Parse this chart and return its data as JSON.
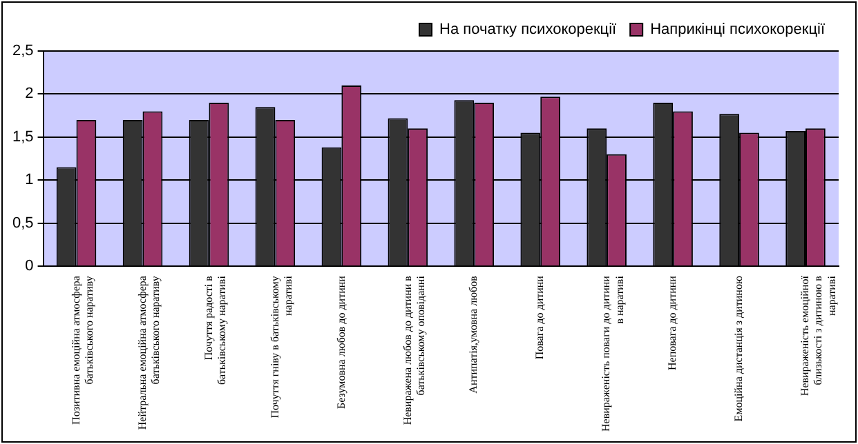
{
  "chart_data": {
    "type": "bar",
    "categories": [
      "Позитивна емоційна атмосфера батьківського наративу",
      "Нейтральна емоційна атмосфера батьківського наративу",
      "Почуття радості в батьківському наративі",
      "Почуття гніву в батьківському наративі",
      "Безумовна любов до дитини",
      "Невиражена любов до дитини в батьківському оповіданні",
      "Антипатія,умовна любов",
      "Повага до дитини",
      "Невираженість поваги до дитини в наративі",
      "Неповага до дитини",
      "Емоційна дистанція з дитиною",
      "Невираженість емоційної близькості з дитиною в наративі"
    ],
    "series": [
      {
        "name": "На початку психокорекції",
        "color": "#333333",
        "values": [
          1.15,
          1.7,
          1.7,
          1.85,
          1.38,
          1.72,
          1.93,
          1.55,
          1.6,
          1.9,
          1.77,
          1.57
        ]
      },
      {
        "name": "Наприкінці психокорекції",
        "color": "#993366",
        "values": [
          1.7,
          1.8,
          1.9,
          1.7,
          2.1,
          1.6,
          1.9,
          1.97,
          1.3,
          1.8,
          1.55,
          1.6
        ]
      }
    ],
    "ylim": [
      0,
      2.5
    ],
    "yticks": [
      0,
      {
        "value": 0.5,
        "label": "0,5"
      },
      1,
      {
        "value": 1.5,
        "label": "1,5"
      },
      2,
      {
        "value": 2.5,
        "label": "2,5"
      }
    ],
    "grid": "y",
    "legend": "top right"
  }
}
